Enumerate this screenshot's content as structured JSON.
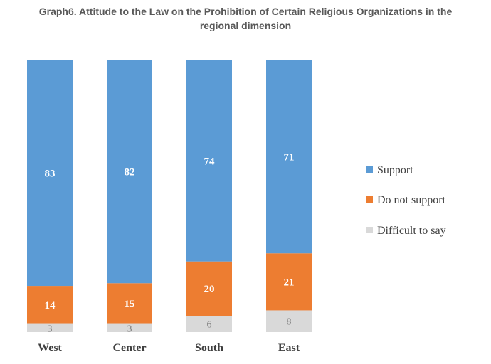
{
  "chart_data": {
    "type": "bar",
    "stacked": true,
    "normalized": true,
    "title": "Graph6. Attitude to the Law on the Prohibition of Certain Religious Organizations in the regional dimension",
    "title_lines": [
      "Graph6. Attitude to the Law on the Prohibition of Certain Religious Organizations in the",
      "regional dimension"
    ],
    "categories": [
      "West",
      "Center",
      "South",
      "East"
    ],
    "series": [
      {
        "name": "Difficult to say",
        "color": "#d9d9d9",
        "label_color": "#808080",
        "values": [
          3,
          3,
          6,
          8
        ]
      },
      {
        "name": "Do not support",
        "color": "#ed7d31",
        "label_color": "#ffffff",
        "values": [
          14,
          15,
          20,
          21
        ]
      },
      {
        "name": "Support",
        "color": "#5b9bd5",
        "label_color": "#ffffff",
        "values": [
          83,
          82,
          74,
          71
        ]
      }
    ],
    "legend": [
      "Support",
      "Do not support",
      "Difficult to say"
    ],
    "legend_position": "right",
    "xlabel": "",
    "ylabel": "",
    "grid": false
  }
}
